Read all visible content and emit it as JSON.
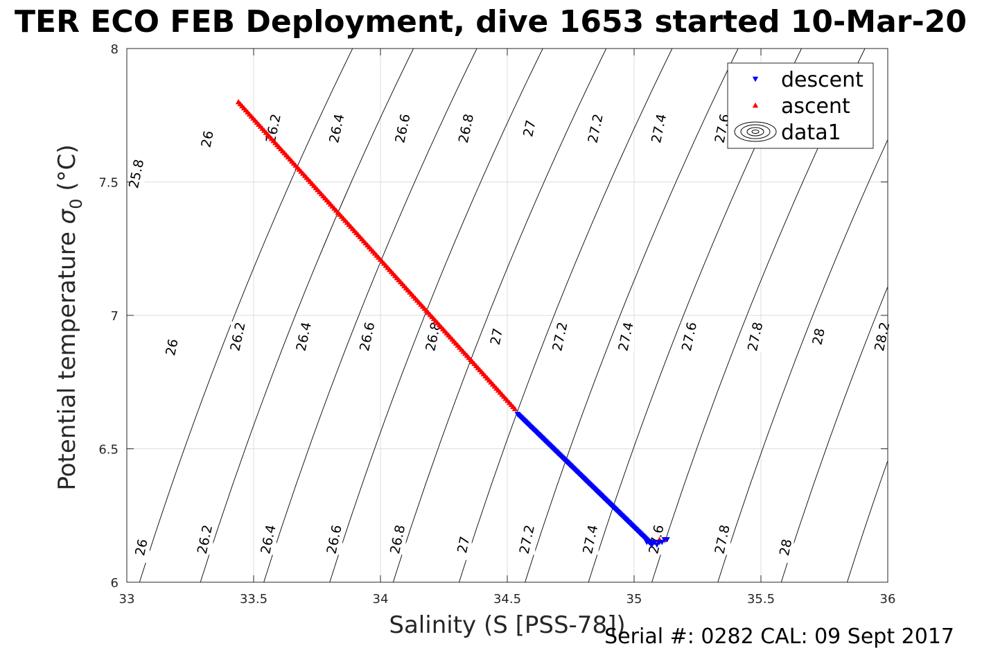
{
  "figure": {
    "title": "TER ECO FEB Deployment, dive 1653 started 10-Mar-20",
    "footer": "Serial #: 0282  CAL: 09 Sept 2017"
  },
  "chart_data": {
    "type": "scatter",
    "title": "TER ECO FEB Deployment, dive 1653 started 10-Mar-20",
    "xlabel": "Salinity (S [PSS-78])",
    "ylabel_main": "Potential temperature ",
    "ylabel_sigma": "σ",
    "ylabel_sub": "0",
    "ylabel_unit": " (°C)",
    "xlim": [
      33,
      36
    ],
    "ylim": [
      6,
      8
    ],
    "xticks": [
      33,
      33.5,
      34,
      34.5,
      35,
      35.5,
      36
    ],
    "xtick_labels": [
      "33",
      "33.5",
      "34",
      "34.5",
      "35",
      "35.5",
      "36"
    ],
    "yticks": [
      6,
      6.5,
      7,
      7.5,
      8
    ],
    "ytick_labels": [
      "6",
      "6.5",
      "7",
      "7.5",
      "8"
    ],
    "grid": true,
    "legend_position": "top-right",
    "legend": [
      {
        "label": "descent",
        "marker": "triangle-down",
        "color": "#0000ff"
      },
      {
        "label": "ascent",
        "marker": "triangle-up",
        "color": "#ff0000"
      },
      {
        "label": "data1",
        "marker": "contour",
        "color": "#000000"
      }
    ],
    "series": [
      {
        "name": "descent",
        "color": "#0000ff",
        "marker": "triangle-down",
        "x_start": 34.54,
        "y_start": 6.63,
        "x_end": 35.07,
        "y_end": 6.14,
        "cluster_x": [
          35.05,
          35.07,
          35.08,
          35.09,
          35.1,
          35.11,
          35.12,
          35.13
        ],
        "cluster_y": [
          6.15,
          6.14,
          6.15,
          6.14,
          6.15,
          6.15,
          6.16,
          6.16
        ]
      },
      {
        "name": "ascent",
        "color": "#ff0000",
        "marker": "triangle-up",
        "x_start": 33.44,
        "y_start": 7.8,
        "x_end": 34.53,
        "y_end": 6.65,
        "cluster_x": [
          35.08,
          35.1,
          35.12
        ],
        "cluster_y": [
          6.15,
          6.16,
          6.16
        ]
      }
    ],
    "contours": [
      {
        "level": "25.8",
        "label_pos": [
          33.04,
          7.53
        ]
      },
      {
        "level": "26",
        "label_pos": [
          33.32,
          7.66
        ]
      },
      {
        "level": "26",
        "label_pos": [
          33.18,
          6.88
        ]
      },
      {
        "level": "26",
        "label_pos": [
          33.06,
          6.13
        ]
      },
      {
        "level": "26.2",
        "label_pos": [
          33.58,
          7.7
        ]
      },
      {
        "level": "26.2",
        "label_pos": [
          33.44,
          6.92
        ]
      },
      {
        "level": "26.2",
        "label_pos": [
          33.31,
          6.16
        ]
      },
      {
        "level": "26.4",
        "label_pos": [
          33.83,
          7.7
        ]
      },
      {
        "level": "26.4",
        "label_pos": [
          33.7,
          6.92
        ]
      },
      {
        "level": "26.4",
        "label_pos": [
          33.56,
          6.16
        ]
      },
      {
        "level": "26.6",
        "label_pos": [
          34.09,
          7.7
        ]
      },
      {
        "level": "26.6",
        "label_pos": [
          33.95,
          6.92
        ]
      },
      {
        "level": "26.6",
        "label_pos": [
          33.82,
          6.16
        ]
      },
      {
        "level": "26.8",
        "label_pos": [
          34.34,
          7.7
        ]
      },
      {
        "level": "26.8",
        "label_pos": [
          34.21,
          6.92
        ]
      },
      {
        "level": "26.8",
        "label_pos": [
          34.07,
          6.16
        ]
      },
      {
        "level": "27",
        "label_pos": [
          34.59,
          7.7
        ]
      },
      {
        "level": "27",
        "label_pos": [
          34.46,
          6.92
        ]
      },
      {
        "level": "27",
        "label_pos": [
          34.33,
          6.14
        ]
      },
      {
        "level": "27.2",
        "label_pos": [
          34.85,
          7.7
        ]
      },
      {
        "level": "27.2",
        "label_pos": [
          34.71,
          6.92
        ]
      },
      {
        "level": "27.2",
        "label_pos": [
          34.58,
          6.16
        ]
      },
      {
        "level": "27.4",
        "label_pos": [
          35.1,
          7.7
        ]
      },
      {
        "level": "27.4",
        "label_pos": [
          34.97,
          6.92
        ]
      },
      {
        "level": "27.4",
        "label_pos": [
          34.83,
          6.16
        ]
      },
      {
        "level": "27.6",
        "label_pos": [
          35.35,
          7.7
        ]
      },
      {
        "level": "27.6",
        "label_pos": [
          35.22,
          6.92
        ]
      },
      {
        "level": "27.6",
        "label_pos": [
          35.09,
          6.16
        ]
      },
      {
        "level": "27.8",
        "label_pos": [
          35.48,
          6.92
        ]
      },
      {
        "level": "27.8",
        "label_pos": [
          35.35,
          6.16
        ]
      },
      {
        "level": "28",
        "label_pos": [
          35.73,
          6.92
        ]
      },
      {
        "level": "28",
        "label_pos": [
          35.6,
          6.13
        ]
      },
      {
        "level": "28.2",
        "label_pos": [
          35.98,
          6.92
        ]
      }
    ]
  }
}
